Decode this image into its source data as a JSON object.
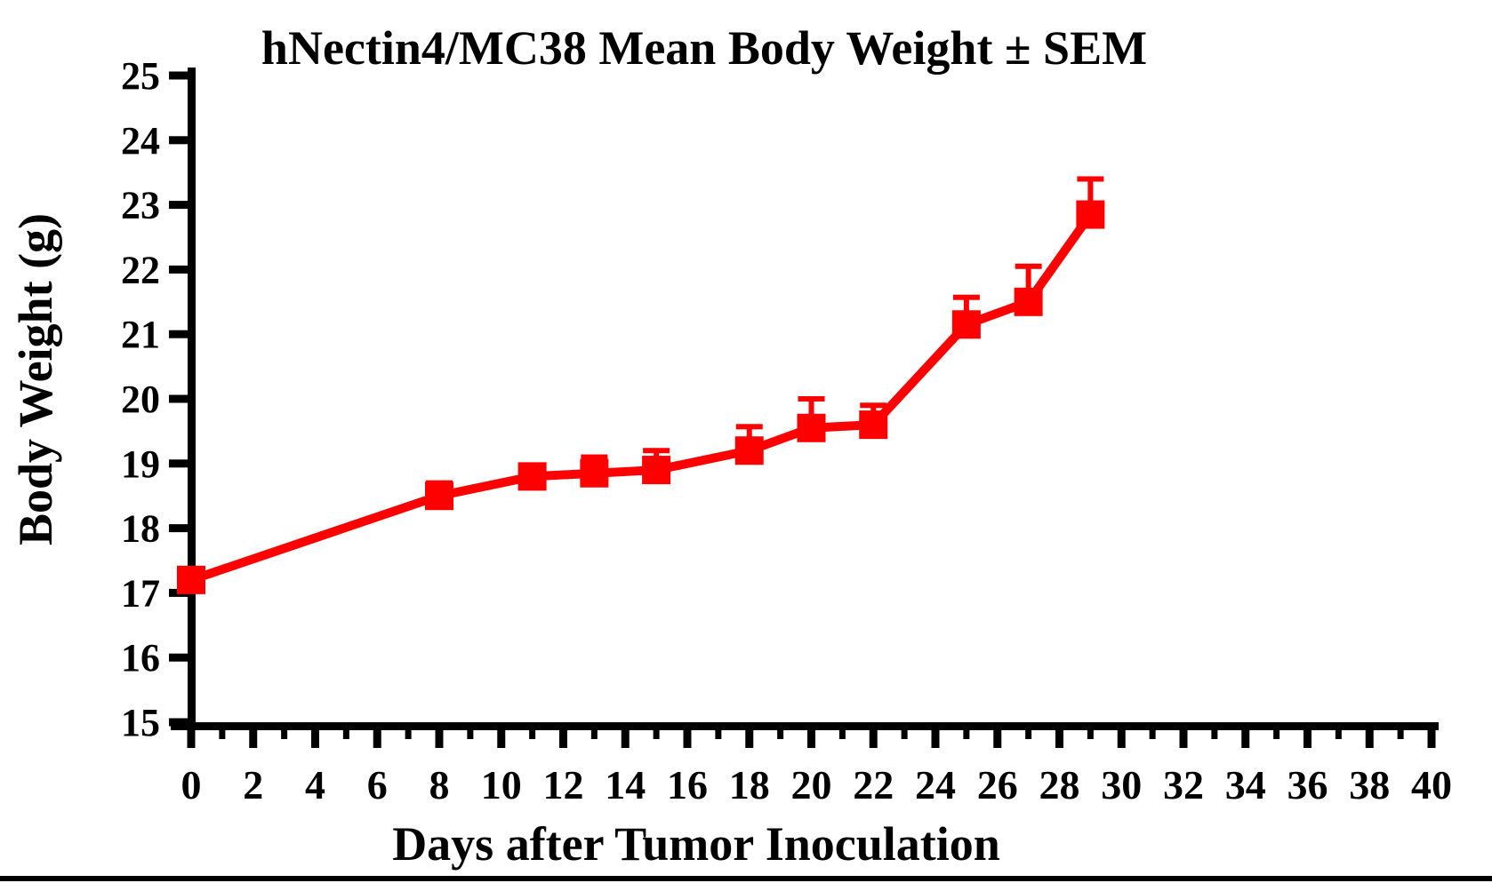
{
  "page": {
    "background_color": "#ffffff",
    "bottom_rule_color": "#000000"
  },
  "chart_data": {
    "type": "line",
    "title": "hNectin4/MC38 Mean Body Weight ± SEM",
    "xlabel": "Days after Tumor Inoculation",
    "ylabel": "Body Weight (g)",
    "xlim": [
      0,
      40
    ],
    "ylim": [
      15,
      25
    ],
    "grid": false,
    "legend": null,
    "axis_color": "#000000",
    "x_major_ticks": [
      0,
      2,
      4,
      6,
      8,
      10,
      12,
      14,
      16,
      18,
      20,
      22,
      24,
      26,
      28,
      30,
      32,
      34,
      36,
      38,
      40
    ],
    "x_minor_ticks": [
      1,
      3,
      5,
      7,
      9,
      11,
      13,
      15,
      17,
      19,
      21,
      23,
      25,
      27,
      29,
      31,
      33,
      35,
      37,
      39
    ],
    "y_ticks": [
      15,
      16,
      17,
      18,
      19,
      20,
      21,
      22,
      23,
      24,
      25
    ],
    "series": [
      {
        "name": "hNectin4/MC38 mean body weight",
        "color": "#ff0000",
        "marker": "square",
        "error_bars": "upper SEM",
        "x": [
          0,
          8,
          11,
          13,
          15,
          18,
          20,
          22,
          25,
          27,
          29
        ],
        "y": [
          17.2,
          18.5,
          18.8,
          18.85,
          18.9,
          19.2,
          19.55,
          19.6,
          21.15,
          21.5,
          22.85
        ],
        "sem": [
          0,
          0.2,
          0,
          0.25,
          0.3,
          0.37,
          0.45,
          0.3,
          0.42,
          0.55,
          0.55
        ]
      }
    ]
  }
}
